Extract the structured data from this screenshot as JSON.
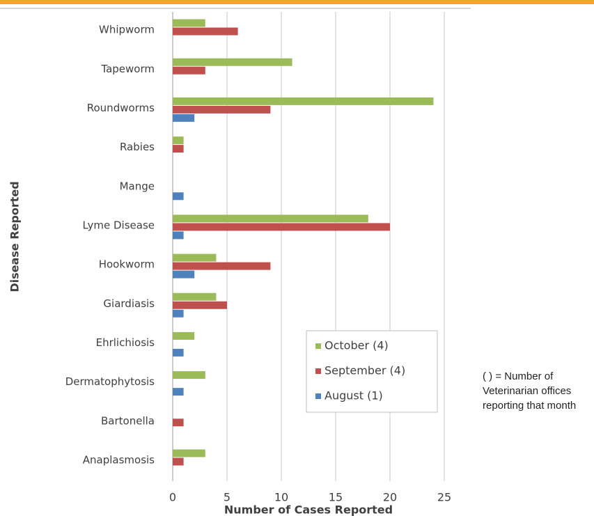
{
  "chart_data": {
    "type": "barh",
    "categories": [
      "Whipworm",
      "Tapeworm",
      "Roundworms",
      "Rabies",
      "Mange",
      "Lyme Disease",
      "Hookworm",
      "Giardiasis",
      "Ehrlichiosis",
      "Dermatophytosis",
      "Bartonella",
      "Anaplasmosis"
    ],
    "series": [
      {
        "name": "October (4)",
        "color": "#9bbb59",
        "values": [
          3,
          11,
          24,
          1,
          0,
          18,
          4,
          4,
          2,
          3,
          0,
          3
        ]
      },
      {
        "name": "September (4)",
        "color": "#c0504d",
        "values": [
          6,
          3,
          9,
          1,
          0,
          20,
          9,
          5,
          0,
          0,
          1,
          1
        ]
      },
      {
        "name": "August (1)",
        "color": "#4f81bd",
        "values": [
          0,
          0,
          2,
          0,
          1,
          1,
          2,
          1,
          1,
          1,
          0,
          0
        ]
      }
    ],
    "xlabel": "Number of Cases Reported",
    "ylabel": "Disease Reported",
    "xlim": [
      0,
      25
    ],
    "xticks": [
      0,
      5,
      10,
      15,
      20,
      25
    ],
    "grid": true,
    "legend": "lower right",
    "annotation": "( ) = Number of Veterinarian offices reporting that month"
  }
}
